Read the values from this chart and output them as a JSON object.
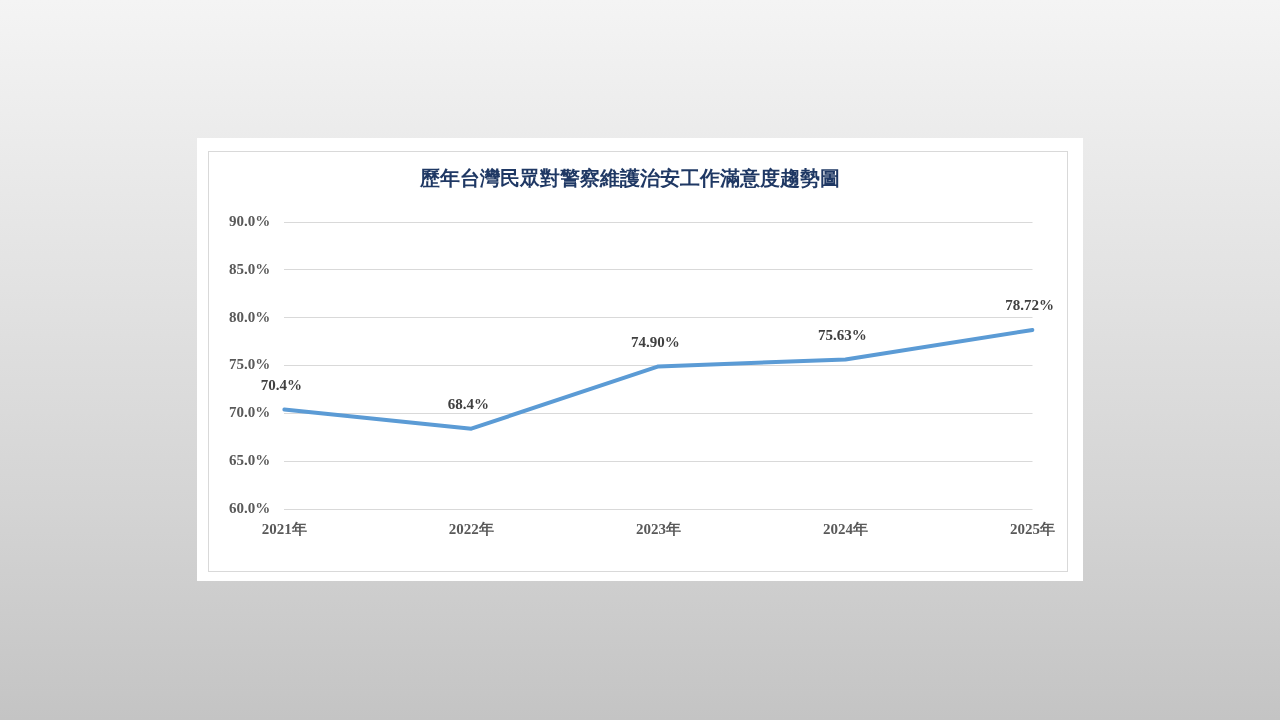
{
  "chart_data": {
    "type": "line",
    "title": "歷年台灣民眾對警察維護治安工作滿意度趨勢圖",
    "categories": [
      "2021年",
      "2022年",
      "2023年",
      "2024年",
      "2025年"
    ],
    "series": [
      {
        "color": "#5b9bd5",
        "values": [
          70.4,
          68.4,
          74.9,
          75.63,
          78.72
        ],
        "value_labels": [
          "70.4%",
          "68.4%",
          "74.90%",
          "75.63%",
          "78.72%"
        ]
      }
    ],
    "ylim": [
      60,
      90
    ],
    "yticks": [
      {
        "value": 60,
        "label": "60.0%"
      },
      {
        "value": 65,
        "label": "65.0%"
      },
      {
        "value": 70,
        "label": "70.0%"
      },
      {
        "value": 75,
        "label": "75.0%"
      },
      {
        "value": 80,
        "label": "80.0%"
      },
      {
        "value": 85,
        "label": "85.0%"
      },
      {
        "value": 90,
        "label": "90.0%"
      }
    ],
    "grid": "y",
    "legend": false,
    "marker": "none",
    "line_style": "solid"
  }
}
